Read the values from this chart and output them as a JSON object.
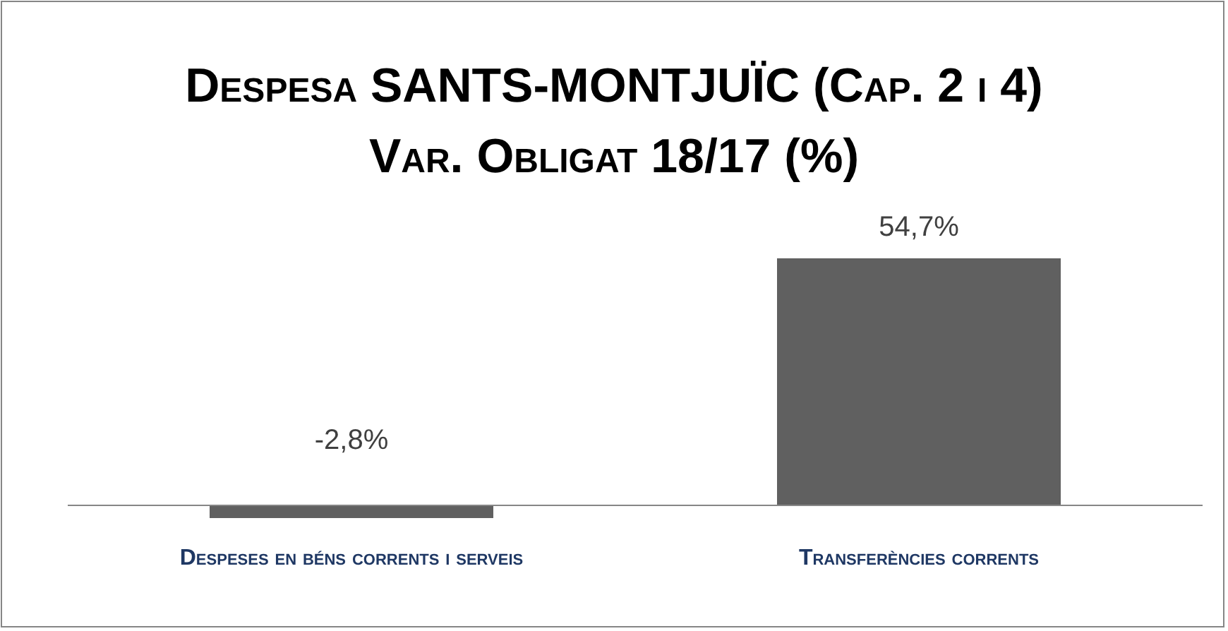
{
  "chart_data": {
    "type": "bar",
    "title": "Despesa SANTS-MONTJUÏC (Cap. 2 i 4)",
    "subtitle": "Var. Obligat 18/17 (%)",
    "categories": [
      "Despeses en béns corrents i serveis",
      "Transferències corrents"
    ],
    "values": [
      -2.8,
      54.7
    ],
    "value_labels": [
      "-2,8%",
      "54,7%"
    ],
    "color": "#606060"
  }
}
